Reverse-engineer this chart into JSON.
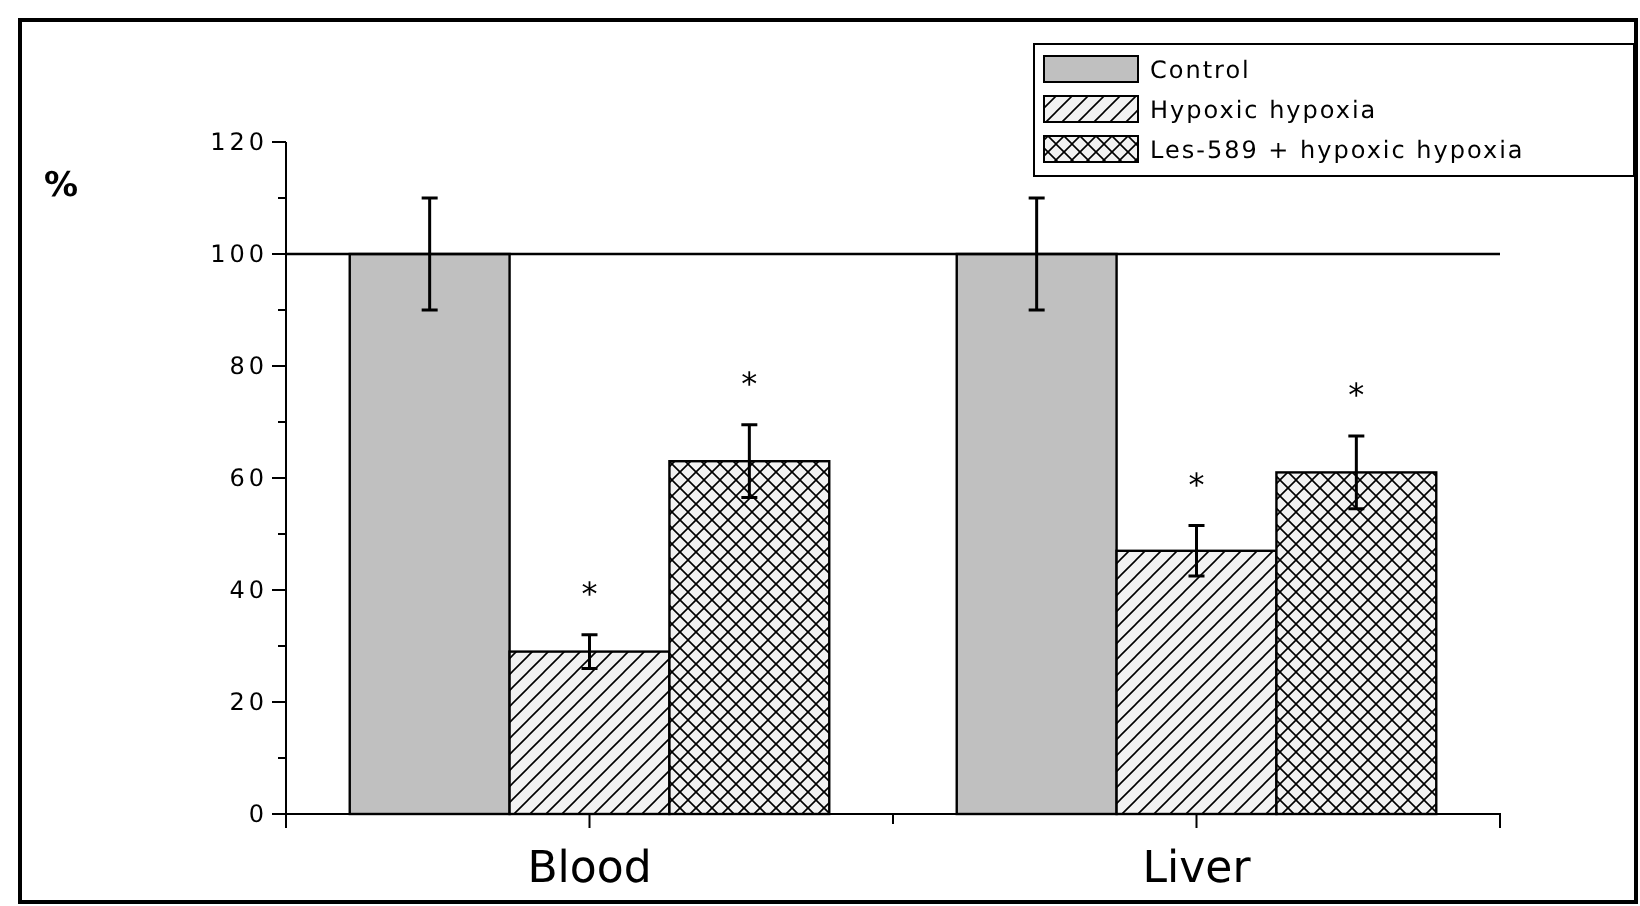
{
  "chart_data": {
    "type": "bar",
    "ylabel": "%",
    "categories": [
      "Blood",
      "Liver"
    ],
    "series": [
      {
        "name": "Control",
        "color": "#c0c0c0",
        "values": [
          100,
          100
        ],
        "errors": [
          10,
          10
        ]
      },
      {
        "name": "Hypoxic hypoxia",
        "color": "#000000",
        "values": [
          29,
          47
        ],
        "errors": [
          3,
          4.5
        ]
      },
      {
        "name": "Les-589 + hypoxic hypoxia",
        "color": "#000000",
        "values": [
          63,
          61
        ],
        "errors": [
          6.5,
          6.5
        ]
      }
    ],
    "ylim": [
      0,
      120
    ],
    "yticks": [
      0,
      {
        "value": 10,
        "label": null
      },
      20,
      {
        "value": 30,
        "label": null
      },
      40,
      {
        "value": 50,
        "label": null
      },
      60,
      {
        "value": 70,
        "label": null
      },
      80,
      {
        "value": 90,
        "label": null
      },
      100,
      {
        "value": 110,
        "label": null
      },
      120
    ],
    "ref_lines": [
      {
        "axis": "y",
        "value": 100
      }
    ],
    "annotations": [
      "*",
      "*",
      "*",
      "*"
    ],
    "legend": "top right",
    "grid": false
  }
}
